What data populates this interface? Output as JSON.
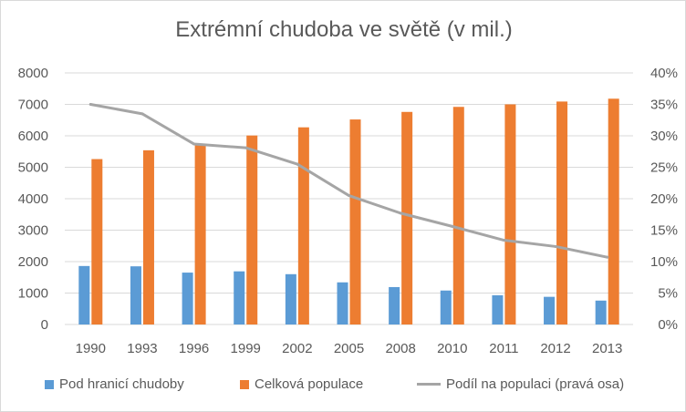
{
  "chart_data": {
    "type": "bar",
    "title": "Extrémní chudoba ve světě (v mil.)",
    "categories": [
      "1990",
      "1993",
      "1996",
      "1999",
      "2002",
      "2005",
      "2008",
      "2010",
      "2011",
      "2012",
      "2013"
    ],
    "series": [
      {
        "name": "Pod hranicí chudoby",
        "type": "bar",
        "axis": "left",
        "color": "#5b9bd5",
        "values": [
          1860,
          1850,
          1650,
          1690,
          1600,
          1340,
          1190,
          1080,
          930,
          880,
          760
        ]
      },
      {
        "name": "Celková populace",
        "type": "bar",
        "axis": "left",
        "color": "#ed7d31",
        "values": [
          5260,
          5540,
          5750,
          6010,
          6270,
          6520,
          6760,
          6920,
          7000,
          7090,
          7180
        ]
      },
      {
        "name": "Podíl na populaci (pravá osa)",
        "type": "line",
        "axis": "right",
        "color": "#a5a5a5",
        "values": [
          0.35,
          0.335,
          0.287,
          0.281,
          0.255,
          0.205,
          0.177,
          0.156,
          0.134,
          0.124,
          0.107
        ]
      }
    ],
    "y_left": {
      "min": 0,
      "max": 8000,
      "ticks": [
        "0",
        "1000",
        "2000",
        "3000",
        "4000",
        "5000",
        "6000",
        "7000",
        "8000"
      ]
    },
    "y_right": {
      "min": 0,
      "max": 0.4,
      "ticks": [
        "0%",
        "5%",
        "10%",
        "15%",
        "20%",
        "25%",
        "30%",
        "35%",
        "40%"
      ]
    },
    "grid": true,
    "legend_position": "bottom"
  }
}
